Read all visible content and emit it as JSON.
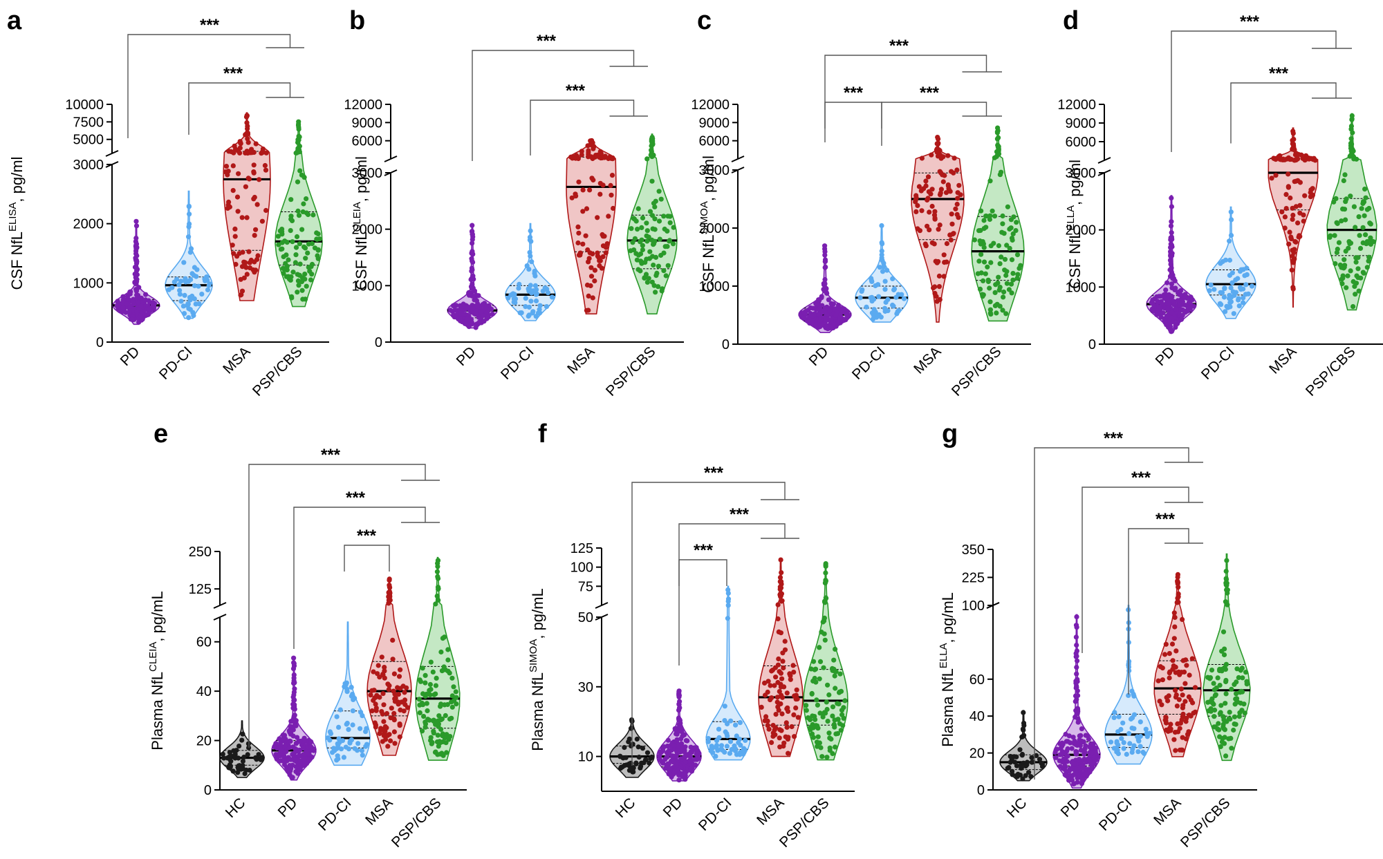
{
  "colors": {
    "HC": "#1a1a1a",
    "PD": "#7a1fb0",
    "PD-CI": "#5aaaf0",
    "MSA": "#b01818",
    "PSP/CBS": "#2a9a2a",
    "fill": {
      "HC": "#bdbdbd",
      "PD": "#d7b9ea",
      "PD-CI": "#d6eafc",
      "MSA": "#f0c6c6",
      "PSP/CBS": "#c4e8c4"
    }
  },
  "chart_data": [
    {
      "type": "violin",
      "panel": "a",
      "ylabel_main": "CSF NfL",
      "ylabel_sup": "ELISA",
      "ylabel_unit": ", pg/ml",
      "categories": [
        "PD",
        "PD-CI",
        "MSA",
        "PSP/CBS"
      ],
      "axis_break": true,
      "lower_ticks": [
        0,
        1000,
        2000,
        3000
      ],
      "upper_ticks": [
        3000,
        5000,
        7500,
        10000
      ],
      "lower_tick_labels": [
        "0",
        "1000",
        "2000",
        "3000"
      ],
      "upper_tick_labels": [
        "5000",
        "7500",
        "10000"
      ],
      "series": [
        {
          "name": "PD",
          "min": 300,
          "q1": 520,
          "median": 620,
          "q3": 720,
          "max": 2050,
          "n": 190
        },
        {
          "name": "PD-CI",
          "min": 400,
          "q1": 700,
          "median": 960,
          "q3": 1100,
          "max": 2550,
          "n": 55
        },
        {
          "name": "MSA",
          "min": 700,
          "q1": 1550,
          "median": 2750,
          "q3": 3300,
          "max": 8800,
          "n": 100
        },
        {
          "name": "PSP/CBS",
          "min": 600,
          "q1": 1300,
          "median": 1700,
          "q3": 2200,
          "max": 7700,
          "n": 110
        }
      ],
      "comparisons": [
        {
          "from": "PD",
          "to": [
            "MSA",
            "PSP/CBS"
          ],
          "label": "***"
        },
        {
          "from": "PD-CI",
          "to": [
            "MSA",
            "PSP/CBS"
          ],
          "label": "***"
        }
      ]
    },
    {
      "type": "violin",
      "panel": "b",
      "ylabel_main": "CSF NfL",
      "ylabel_sup": "CLEIA",
      "ylabel_unit": ", pg/ml",
      "categories": [
        "PD",
        "PD-CI",
        "MSA",
        "PSP/CBS"
      ],
      "axis_break": true,
      "lower_ticks": [
        0,
        1000,
        2000,
        3000
      ],
      "upper_ticks": [
        3000,
        6000,
        9000,
        12000
      ],
      "lower_tick_labels": [
        "0",
        "1000",
        "2000",
        "3000"
      ],
      "upper_tick_labels": [
        "6000",
        "9000",
        "12000"
      ],
      "series": [
        {
          "name": "PD",
          "min": 250,
          "q1": 430,
          "median": 560,
          "q3": 650,
          "max": 2100,
          "n": 190
        },
        {
          "name": "PD-CI",
          "min": 380,
          "q1": 650,
          "median": 840,
          "q3": 1000,
          "max": 2100,
          "n": 55
        },
        {
          "name": "MSA",
          "min": 500,
          "q1": 1600,
          "median": 2750,
          "q3": 3300,
          "max": 6100,
          "n": 100
        },
        {
          "name": "PSP/CBS",
          "min": 500,
          "q1": 1300,
          "median": 1800,
          "q3": 2250,
          "max": 7100,
          "n": 110
        }
      ],
      "comparisons": [
        {
          "from": "PD",
          "to": [
            "MSA",
            "PSP/CBS"
          ],
          "label": "***"
        },
        {
          "from": "PD-CI",
          "to": [
            "MSA",
            "PSP/CBS"
          ],
          "label": "***"
        }
      ]
    },
    {
      "type": "violin",
      "panel": "c",
      "ylabel_main": "CSF NfL",
      "ylabel_sup": "SIMOA",
      "ylabel_unit": ", pg/ml",
      "categories": [
        "PD",
        "PD-CI",
        "MSA",
        "PSP/CBS"
      ],
      "axis_break": true,
      "lower_ticks": [
        0,
        1000,
        2000,
        3000
      ],
      "upper_ticks": [
        3000,
        6000,
        9000,
        12000
      ],
      "lower_tick_labels": [
        "0",
        "1000",
        "2000",
        "3000"
      ],
      "upper_tick_labels": [
        "6000",
        "9000",
        "12000"
      ],
      "series": [
        {
          "name": "PD",
          "min": 200,
          "q1": 400,
          "median": 510,
          "q3": 620,
          "max": 1700,
          "n": 190
        },
        {
          "name": "PD-CI",
          "min": 380,
          "q1": 620,
          "median": 800,
          "q3": 1000,
          "max": 2050,
          "n": 55
        },
        {
          "name": "MSA",
          "min": 380,
          "q1": 1800,
          "median": 2500,
          "q3": 2950,
          "max": 6600,
          "n": 100
        },
        {
          "name": "PSP/CBS",
          "min": 400,
          "q1": 1100,
          "median": 1600,
          "q3": 2200,
          "max": 8200,
          "n": 110
        }
      ],
      "comparisons": [
        {
          "from": "PD",
          "to": [
            "MSA",
            "PSP/CBS"
          ],
          "label": "***"
        },
        {
          "from": "PD",
          "to": [
            "PD-CI"
          ],
          "label": "***"
        },
        {
          "from": "PD-CI",
          "to": [
            "MSA",
            "PSP/CBS"
          ],
          "label": "***"
        }
      ]
    },
    {
      "type": "violin",
      "panel": "d",
      "ylabel_main": "CSF NfL",
      "ylabel_sup": "ELLA",
      "ylabel_unit": ", pg/ml",
      "categories": [
        "PD",
        "PD-CI",
        "MSA",
        "PSP/CBS"
      ],
      "axis_break": true,
      "lower_ticks": [
        0,
        1000,
        2000,
        3000
      ],
      "upper_ticks": [
        3000,
        6000,
        9000,
        12000
      ],
      "lower_tick_labels": [
        "0",
        "1000",
        "2000",
        "3000"
      ],
      "upper_tick_labels": [
        "6000",
        "9000",
        "12000"
      ],
      "series": [
        {
          "name": "PD",
          "min": 200,
          "q1": 560,
          "median": 700,
          "q3": 850,
          "max": 2600,
          "n": 190
        },
        {
          "name": "PD-CI",
          "min": 450,
          "q1": 860,
          "median": 1050,
          "q3": 1300,
          "max": 2400,
          "n": 55
        },
        {
          "name": "MSA",
          "min": 650,
          "q1": 2350,
          "median": 3000,
          "q3": 3300,
          "max": 8200,
          "n": 100
        },
        {
          "name": "PSP/CBS",
          "min": 600,
          "q1": 1550,
          "median": 2000,
          "q3": 2550,
          "max": 10500,
          "n": 110
        }
      ],
      "comparisons": [
        {
          "from": "PD",
          "to": [
            "MSA",
            "PSP/CBS"
          ],
          "label": "***"
        },
        {
          "from": "PD-CI",
          "to": [
            "MSA",
            "PSP/CBS"
          ],
          "label": "***"
        }
      ]
    },
    {
      "type": "violin",
      "panel": "e",
      "ylabel_main": "Plasma NfL",
      "ylabel_sup": "CLEIA",
      "ylabel_unit": ", pg/mL",
      "categories": [
        "HC",
        "PD",
        "PD-CI",
        "MSA",
        "PSP/CBS"
      ],
      "axis_break": true,
      "lower_ticks": [
        0,
        20,
        40,
        60,
        70
      ],
      "upper_ticks": [
        70,
        125,
        250
      ],
      "lower_tick_labels": [
        "0",
        "20",
        "40",
        "60"
      ],
      "upper_tick_labels": [
        "125",
        "250"
      ],
      "series": [
        {
          "name": "HC",
          "min": 5,
          "q1": 10,
          "median": 13,
          "q3": 16,
          "max": 28,
          "n": 45
        },
        {
          "name": "PD",
          "min": 4,
          "q1": 12,
          "median": 16,
          "q3": 20,
          "max": 54,
          "n": 200
        },
        {
          "name": "PD-CI",
          "min": 10,
          "q1": 17,
          "median": 21,
          "q3": 32,
          "max": 68,
          "n": 55
        },
        {
          "name": "MSA",
          "min": 14,
          "q1": 30,
          "median": 40,
          "q3": 52,
          "max": 160,
          "n": 100
        },
        {
          "name": "PSP/CBS",
          "min": 12,
          "q1": 25,
          "median": 37,
          "q3": 50,
          "max": 230,
          "n": 110
        }
      ],
      "comparisons": [
        {
          "from": "HC",
          "to": [
            "MSA",
            "PSP/CBS"
          ],
          "label": "***"
        },
        {
          "from": "PD",
          "to": [
            "MSA",
            "PSP/CBS"
          ],
          "label": "***"
        },
        {
          "from": "PD-CI",
          "to": [
            "MSA"
          ],
          "label": "***"
        }
      ]
    },
    {
      "type": "violin",
      "panel": "f",
      "ylabel_main": "Plasma NfL",
      "ylabel_sup": "SIMOA",
      "ylabel_unit": ", pg/mL",
      "categories": [
        "HC",
        "PD",
        "PD-CI",
        "MSA",
        "PSP/CBS"
      ],
      "axis_break": true,
      "lower_ticks": [
        0,
        10,
        30,
        50
      ],
      "upper_ticks": [
        50,
        75,
        100,
        125
      ],
      "lower_tick_labels": [
        "10",
        "30",
        "50"
      ],
      "upper_tick_labels": [
        "75",
        "100",
        "125"
      ],
      "series": [
        {
          "name": "HC",
          "min": 4,
          "q1": 8,
          "median": 10,
          "q3": 13,
          "max": 21,
          "n": 45
        },
        {
          "name": "PD",
          "min": 3,
          "q1": 7,
          "median": 10,
          "q3": 13,
          "max": 29,
          "n": 200
        },
        {
          "name": "PD-CI",
          "min": 9,
          "q1": 12,
          "median": 15,
          "q3": 20,
          "max": 75,
          "n": 55
        },
        {
          "name": "MSA",
          "min": 10,
          "q1": 19,
          "median": 27,
          "q3": 36,
          "max": 110,
          "n": 100
        },
        {
          "name": "PSP/CBS",
          "min": 9,
          "q1": 19,
          "median": 26,
          "q3": 35,
          "max": 105,
          "n": 110
        }
      ],
      "comparisons": [
        {
          "from": "HC",
          "to": [
            "MSA",
            "PSP/CBS"
          ],
          "label": "***"
        },
        {
          "from": "PD",
          "to": [
            "MSA",
            "PSP/CBS"
          ],
          "label": "***"
        },
        {
          "from": "PD",
          "to": [
            "PD-CI"
          ],
          "label": "***"
        }
      ]
    },
    {
      "type": "violin",
      "panel": "g",
      "ylabel_main": "Plasma NfL",
      "ylabel_sup": "ELLA",
      "ylabel_unit": ", pg/mL",
      "categories": [
        "HC",
        "PD",
        "PD-CI",
        "MSA",
        "PSP/CBS"
      ],
      "axis_break": true,
      "lower_ticks": [
        0,
        20,
        40,
        60,
        100
      ],
      "upper_ticks": [
        100,
        225,
        350
      ],
      "lower_tick_labels": [
        "0",
        "20",
        "40",
        "60",
        "100"
      ],
      "upper_tick_labels": [
        "225",
        "350"
      ],
      "series": [
        {
          "name": "HC",
          "min": 5,
          "q1": 11,
          "median": 15,
          "q3": 19,
          "max": 43,
          "n": 45
        },
        {
          "name": "PD",
          "min": 1,
          "q1": 13,
          "median": 19,
          "q3": 26,
          "max": 95,
          "n": 200
        },
        {
          "name": "PD-CI",
          "min": 14,
          "q1": 23,
          "median": 30,
          "q3": 41,
          "max": 100,
          "n": 55
        },
        {
          "name": "MSA",
          "min": 18,
          "q1": 41,
          "median": 55,
          "q3": 70,
          "max": 245,
          "n": 100
        },
        {
          "name": "PSP/CBS",
          "min": 16,
          "q1": 40,
          "median": 54,
          "q3": 68,
          "max": 330,
          "n": 110
        }
      ],
      "comparisons": [
        {
          "from": "HC",
          "to": [
            "MSA",
            "PSP/CBS"
          ],
          "label": "***"
        },
        {
          "from": "PD",
          "to": [
            "MSA",
            "PSP/CBS"
          ],
          "label": "***"
        },
        {
          "from": "PD-CI",
          "to": [
            "MSA",
            "PSP/CBS"
          ],
          "label": "***"
        }
      ]
    }
  ]
}
